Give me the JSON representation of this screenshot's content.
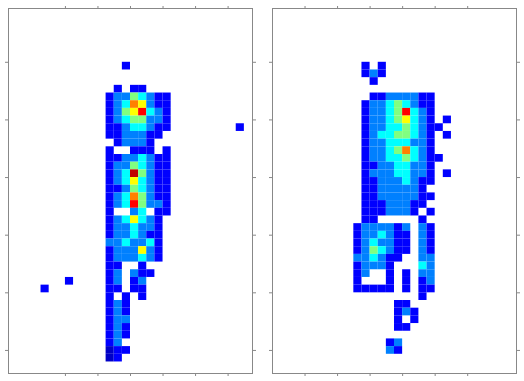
{
  "chart_data": [
    {
      "type": "heatmap",
      "xlim": [
        0,
        60
      ],
      "ylim": [
        95,
        0
      ],
      "xticks": [
        14,
        22,
        30,
        38,
        46,
        54
      ],
      "yticks": [
        14,
        29,
        44,
        59,
        74,
        89
      ],
      "tick_labels": false,
      "clim": [
        0,
        10
      ],
      "colors": [
        "#00008f",
        "#0000ff",
        "#00ffff",
        "#ffff00",
        "#ff0000",
        "#800000"
      ],
      "cell": 2,
      "cells": [
        {
          "y": 14,
          "x": 28,
          "values": [
            2
          ]
        },
        {
          "y": 20,
          "x": 26,
          "values": [
            2,
            null,
            2,
            2
          ]
        },
        {
          "y": 22,
          "x": 24,
          "values": [
            2,
            3,
            3,
            5,
            4,
            3,
            2,
            2
          ]
        },
        {
          "y": 24,
          "x": 24,
          "values": [
            2,
            3,
            4,
            7,
            6,
            3,
            2,
            2
          ]
        },
        {
          "y": 26,
          "x": 24,
          "values": [
            2,
            3,
            5,
            6,
            8,
            4,
            3,
            2
          ]
        },
        {
          "y": 28,
          "x": 24,
          "values": [
            2,
            3,
            4,
            5,
            5,
            3,
            3,
            2
          ]
        },
        {
          "y": 30,
          "x": 24,
          "values": [
            2,
            2,
            3,
            4,
            4,
            3,
            2,
            2
          ]
        },
        {
          "y": 30,
          "x": 56,
          "values": [
            2
          ]
        },
        {
          "y": 32,
          "x": 24,
          "values": [
            2,
            2,
            3,
            3,
            3,
            2,
            2
          ]
        },
        {
          "y": 34,
          "x": 26,
          "values": [
            2,
            3,
            3,
            3,
            2
          ]
        },
        {
          "y": 36,
          "x": 24,
          "values": [
            2,
            null,
            null,
            2,
            2,
            2,
            null,
            2
          ]
        },
        {
          "y": 38,
          "x": 24,
          "values": [
            2,
            2,
            3,
            3,
            4,
            3,
            2,
            2
          ]
        },
        {
          "y": 40,
          "x": 24,
          "values": [
            2,
            3,
            3,
            5,
            4,
            3,
            2,
            2
          ]
        },
        {
          "y": 42,
          "x": 24,
          "values": [
            2,
            3,
            4,
            9,
            5,
            3,
            2,
            2
          ]
        },
        {
          "y": 44,
          "x": 24,
          "values": [
            2,
            3,
            4,
            6,
            4,
            3,
            2,
            2
          ]
        },
        {
          "y": 46,
          "x": 24,
          "values": [
            2,
            2,
            3,
            5,
            4,
            3,
            2,
            2
          ]
        },
        {
          "y": 48,
          "x": 24,
          "values": [
            2,
            3,
            4,
            7,
            5,
            3,
            2,
            2
          ]
        },
        {
          "y": 50,
          "x": 24,
          "values": [
            2,
            3,
            4,
            8,
            5,
            3,
            3,
            2
          ]
        },
        {
          "y": 52,
          "x": 24,
          "values": [
            2,
            null,
            null,
            3,
            4,
            null,
            2,
            2
          ]
        },
        {
          "y": 54,
          "x": 24,
          "values": [
            2,
            3,
            4,
            6,
            4,
            3,
            2
          ]
        },
        {
          "y": 56,
          "x": 24,
          "values": [
            2,
            3,
            3,
            4,
            3,
            3,
            2
          ]
        },
        {
          "y": 58,
          "x": 24,
          "values": [
            2,
            3,
            3,
            4,
            3,
            2,
            2
          ]
        },
        {
          "y": 60,
          "x": 24,
          "values": [
            3,
            3,
            4,
            3,
            3,
            4,
            2
          ]
        },
        {
          "y": 62,
          "x": 24,
          "values": [
            2,
            3,
            3,
            3,
            6,
            3,
            2
          ]
        },
        {
          "y": 64,
          "x": 24,
          "values": [
            2,
            3,
            3,
            3,
            4,
            3,
            2
          ]
        },
        {
          "y": 66,
          "x": 24,
          "values": [
            2,
            2,
            null,
            null,
            2,
            null,
            null
          ]
        },
        {
          "y": 68,
          "x": 24,
          "values": [
            2,
            3,
            null,
            3,
            2,
            2
          ]
        },
        {
          "y": 70,
          "x": 24,
          "values": [
            2,
            3,
            null,
            2,
            3
          ]
        },
        {
          "y": 70,
          "x": 14,
          "values": [
            2
          ]
        },
        {
          "y": 72,
          "x": 8,
          "values": [
            2
          ]
        },
        {
          "y": 72,
          "x": 24,
          "values": [
            2,
            2,
            null,
            2,
            2
          ]
        },
        {
          "y": 74,
          "x": 24,
          "values": [
            2,
            null,
            2,
            null,
            2
          ]
        },
        {
          "y": 76,
          "x": 24,
          "values": [
            2,
            3,
            2
          ]
        },
        {
          "y": 78,
          "x": 24,
          "values": [
            2,
            3,
            2
          ]
        },
        {
          "y": 80,
          "x": 24,
          "values": [
            2,
            3,
            3
          ]
        },
        {
          "y": 82,
          "x": 24,
          "values": [
            2,
            3,
            2
          ]
        },
        {
          "y": 84,
          "x": 24,
          "values": [
            2,
            3,
            2
          ]
        },
        {
          "y": 86,
          "x": 24,
          "values": [
            2,
            3
          ]
        },
        {
          "y": 88,
          "x": 24,
          "values": [
            1,
            2,
            2
          ]
        },
        {
          "y": 90,
          "x": 24,
          "values": [
            1,
            2
          ]
        }
      ]
    },
    {
      "type": "heatmap",
      "xlim": [
        0,
        60
      ],
      "ylim": [
        95,
        0
      ],
      "xticks": [
        8,
        16,
        24,
        32,
        40,
        48
      ],
      "yticks": [
        14,
        29,
        44,
        59,
        74,
        89
      ],
      "tick_labels": false,
      "clim": [
        0,
        10
      ],
      "colors": [
        "#00008f",
        "#0000ff",
        "#00ffff",
        "#ffff00",
        "#ff0000",
        "#800000"
      ],
      "cell": 2,
      "cells": [
        {
          "y": 14,
          "x": 22,
          "values": [
            2,
            null,
            2
          ]
        },
        {
          "y": 16,
          "x": 22,
          "values": [
            2,
            3,
            2
          ]
        },
        {
          "y": 18,
          "x": 24,
          "values": [
            2
          ]
        },
        {
          "y": 22,
          "x": 24,
          "values": [
            2,
            2,
            3,
            3,
            3,
            3,
            2,
            2
          ]
        },
        {
          "y": 24,
          "x": 22,
          "values": [
            2,
            3,
            3,
            4,
            5,
            4,
            3,
            2,
            2
          ]
        },
        {
          "y": 26,
          "x": 22,
          "values": [
            2,
            3,
            3,
            4,
            5,
            8,
            4,
            3,
            2
          ]
        },
        {
          "y": 28,
          "x": 22,
          "values": [
            2,
            3,
            3,
            4,
            5,
            6,
            4,
            3,
            2
          ]
        },
        {
          "y": 28,
          "x": 42,
          "values": [
            2
          ]
        },
        {
          "y": 30,
          "x": 22,
          "values": [
            2,
            3,
            3,
            4,
            4,
            5,
            4,
            3,
            2,
            2
          ]
        },
        {
          "y": 32,
          "x": 22,
          "values": [
            2,
            3,
            4,
            4,
            5,
            5,
            4,
            3,
            2
          ]
        },
        {
          "y": 32,
          "x": 42,
          "values": [
            2
          ]
        },
        {
          "y": 34,
          "x": 22,
          "values": [
            2,
            3,
            3,
            4,
            4,
            4,
            3,
            3,
            2
          ]
        },
        {
          "y": 36,
          "x": 22,
          "values": [
            2,
            3,
            3,
            4,
            5,
            7,
            4,
            3,
            2
          ]
        },
        {
          "y": 38,
          "x": 22,
          "values": [
            2,
            3,
            3,
            4,
            4,
            5,
            4,
            3,
            2,
            2
          ]
        },
        {
          "y": 40,
          "x": 22,
          "values": [
            2,
            2,
            3,
            3,
            4,
            4,
            3,
            3,
            2
          ]
        },
        {
          "y": 42,
          "x": 22,
          "values": [
            2,
            3,
            3,
            3,
            4,
            4,
            3,
            3,
            2,
            null,
            2
          ]
        },
        {
          "y": 44,
          "x": 22,
          "values": [
            2,
            2,
            3,
            3,
            3,
            4,
            3,
            2,
            2
          ]
        },
        {
          "y": 46,
          "x": 22,
          "values": [
            2,
            2,
            3,
            3,
            3,
            3,
            3,
            2
          ]
        },
        {
          "y": 48,
          "x": 22,
          "values": [
            2,
            2,
            3,
            3,
            3,
            3,
            3,
            2,
            2
          ]
        },
        {
          "y": 50,
          "x": 22,
          "values": [
            2,
            2,
            2,
            3,
            3,
            3,
            2,
            2
          ]
        },
        {
          "y": 52,
          "x": 22,
          "values": [
            2,
            2,
            2,
            3,
            3,
            3,
            2,
            null,
            2
          ]
        },
        {
          "y": 54,
          "x": 22,
          "values": [
            2,
            2,
            null,
            null,
            null,
            null,
            null,
            2
          ]
        },
        {
          "y": 56,
          "x": 20,
          "values": [
            2,
            3,
            3,
            3,
            3,
            2,
            3,
            null,
            3,
            2
          ]
        },
        {
          "y": 58,
          "x": 20,
          "values": [
            2,
            3,
            3,
            4,
            3,
            2,
            2,
            null,
            3,
            2
          ]
        },
        {
          "y": 60,
          "x": 20,
          "values": [
            2,
            3,
            4,
            3,
            3,
            2,
            2,
            null,
            3,
            2
          ]
        },
        {
          "y": 62,
          "x": 20,
          "values": [
            2,
            3,
            5,
            4,
            3,
            2,
            2,
            null,
            3,
            2
          ]
        },
        {
          "y": 64,
          "x": 20,
          "values": [
            3,
            3,
            4,
            3,
            2,
            2,
            null,
            null,
            3,
            3
          ]
        },
        {
          "y": 66,
          "x": 20,
          "values": [
            2,
            3,
            3,
            3,
            2,
            null,
            null,
            null,
            4,
            3
          ]
        },
        {
          "y": 68,
          "x": 20,
          "values": [
            2,
            3,
            null,
            null,
            2,
            null,
            2,
            null,
            3,
            3
          ]
        },
        {
          "y": 70,
          "x": 20,
          "values": [
            2,
            null,
            null,
            null,
            2,
            null,
            2,
            null,
            2,
            3
          ]
        },
        {
          "y": 72,
          "x": 20,
          "values": [
            2,
            2,
            2,
            2,
            2,
            null,
            2,
            null,
            2,
            2
          ]
        },
        {
          "y": 74,
          "x": 36,
          "values": [
            2
          ]
        },
        {
          "y": 76,
          "x": 30,
          "values": [
            2,
            2
          ]
        },
        {
          "y": 78,
          "x": 30,
          "values": [
            2,
            3,
            2
          ]
        },
        {
          "y": 80,
          "x": 30,
          "values": [
            2,
            null,
            2
          ]
        },
        {
          "y": 82,
          "x": 30,
          "values": [
            2,
            2
          ]
        },
        {
          "y": 86,
          "x": 28,
          "values": [
            2,
            3
          ]
        },
        {
          "y": 88,
          "x": 28,
          "values": [
            3,
            2
          ]
        }
      ]
    }
  ]
}
